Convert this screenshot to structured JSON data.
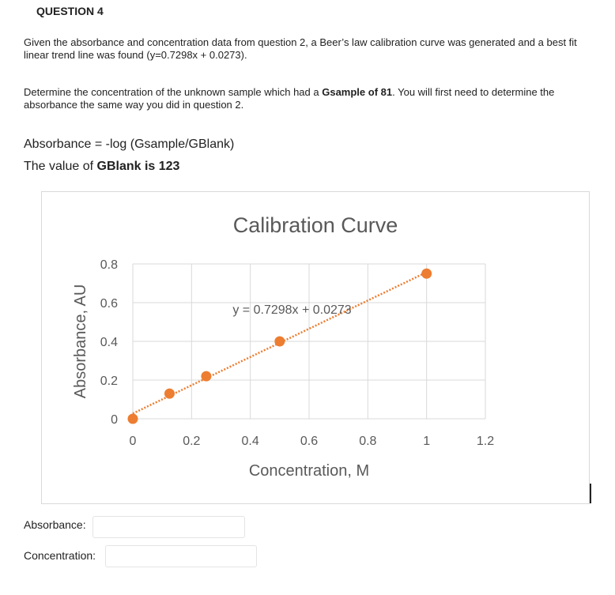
{
  "question": {
    "title": "QUESTION 4",
    "para1": "Given the absorbance and concentration data from question 2, a Beer’s law calibration curve was generated and a best fit linear trend line was found (y=0.7298x + 0.0273).",
    "para2_before": "Determine the concentration of the unknown sample which had a ",
    "para2_gsample": "Gsample",
    "para2_of81": " of 81",
    "para2_after": ".  You will first need to determine the absorbance the same way you did in question 2.",
    "formula": "Absorbance = -log (Gsample/GBlank)",
    "blank_prefix": "The value of ",
    "blank_g": "GBlank",
    "blank_value": " is 123"
  },
  "chart_data": {
    "type": "scatter",
    "title": "Calibration Curve",
    "xlabel": "Concentration, M",
    "ylabel": "Absorbance, AU",
    "xlim": [
      0,
      1.2
    ],
    "ylim": [
      0,
      0.8
    ],
    "xticks": [
      "0",
      "0.2",
      "0.4",
      "0.6",
      "0.8",
      "1",
      "1.2"
    ],
    "yticks": [
      "0",
      "0.2",
      "0.4",
      "0.6",
      "0.8"
    ],
    "series": [
      {
        "x": [
          0,
          0.125,
          0.25,
          0.5,
          1.0
        ],
        "y": [
          0,
          0.13,
          0.22,
          0.4,
          0.75
        ]
      }
    ],
    "trendline": {
      "slope": 0.7298,
      "intercept": 0.0273,
      "label": "y = 0.7298x + 0.0273"
    },
    "grid": true,
    "colors": {
      "marker": "#ED7D31",
      "grid": "#d9d9d9",
      "text": "#595959"
    }
  },
  "answers": {
    "absorbance_label": "Absorbance:",
    "absorbance_value": "",
    "concentration_label": "Concentration:",
    "concentration_value": ""
  }
}
